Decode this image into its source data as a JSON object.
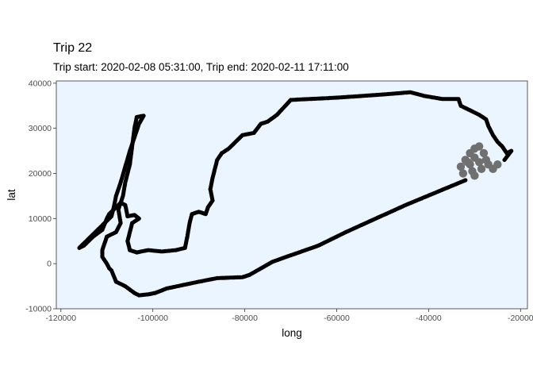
{
  "chart_data": {
    "type": "scatter",
    "title": "Trip 22",
    "subtitle": "Trip start: 2020-02-08 05:31:00, Trip end: 2020-02-11 17:11:00",
    "xlabel": "long",
    "ylabel": "lat",
    "xlim": [
      -121000,
      -18500
    ],
    "ylim": [
      -10000,
      40500
    ],
    "x_ticks": [
      -120000,
      -100000,
      -80000,
      -60000,
      -40000,
      -20000
    ],
    "x_tick_labels": [
      "-120000",
      "-100000",
      "-80000",
      "-60000",
      "-40000",
      "-20000"
    ],
    "y_ticks": [
      -10000,
      0,
      10000,
      20000,
      30000,
      40000
    ],
    "y_tick_labels": [
      "-10000",
      "0",
      "10000",
      "20000",
      "30000",
      "40000"
    ],
    "grid": false,
    "panel_background": "#ebf5ff",
    "colors": {
      "track": "#000000",
      "cluster": "#707070"
    },
    "series": [
      {
        "points": [
          [
            -32000,
            18500
          ],
          [
            -45000,
            13000
          ],
          [
            -58000,
            7000
          ],
          [
            -64000,
            4000
          ],
          [
            -71000,
            1500
          ],
          [
            -74000,
            400
          ],
          [
            -79000,
            -2500
          ],
          [
            -80500,
            -3000
          ],
          [
            -86000,
            -3200
          ],
          [
            -90000,
            -4000
          ],
          [
            -97000,
            -5500
          ],
          [
            -99500,
            -6500
          ],
          [
            -101000,
            -6800
          ],
          [
            -103000,
            -7000
          ],
          [
            -104000,
            -6500
          ],
          [
            -106000,
            -5000
          ],
          [
            -108000,
            -4000
          ],
          [
            -109000,
            -1500
          ],
          [
            -109500,
            -1000
          ],
          [
            -110000,
            0
          ],
          [
            -111000,
            1500
          ],
          [
            -111000,
            3000
          ],
          [
            -110000,
            6000
          ],
          [
            -108000,
            7000
          ],
          [
            -107000,
            9000
          ],
          [
            -107500,
            12000
          ],
          [
            -106500,
            15000
          ],
          [
            -106000,
            18000
          ],
          [
            -105000,
            22000
          ],
          [
            -104500,
            26000
          ],
          [
            -104000,
            30000
          ],
          [
            -103500,
            32500
          ],
          [
            -102000,
            32800
          ],
          [
            -103000,
            31000
          ],
          [
            -105000,
            25000
          ],
          [
            -107000,
            18000
          ],
          [
            -108000,
            15000
          ],
          [
            -108500,
            12500
          ],
          [
            -109000,
            10500
          ],
          [
            -110000,
            9500
          ],
          [
            -111500,
            8000
          ],
          [
            -113000,
            6500
          ],
          [
            -115000,
            4500
          ],
          [
            -116000,
            3500
          ],
          [
            -115000,
            4000
          ],
          [
            -113000,
            6000
          ],
          [
            -111000,
            7500
          ],
          [
            -110000,
            10000
          ],
          [
            -109500,
            11000
          ],
          [
            -108000,
            12500
          ],
          [
            -107000,
            13500
          ],
          [
            -106000,
            13000
          ],
          [
            -105500,
            10500
          ],
          [
            -104000,
            10800
          ],
          [
            -103000,
            10000
          ],
          [
            -104500,
            9000
          ],
          [
            -105000,
            7000
          ],
          [
            -105500,
            5000
          ],
          [
            -105000,
            3000
          ],
          [
            -103500,
            2500
          ],
          [
            -101000,
            3000
          ],
          [
            -98000,
            2700
          ],
          [
            -95000,
            3000
          ],
          [
            -93000,
            3500
          ],
          [
            -92500,
            6000
          ],
          [
            -92000,
            9000
          ],
          [
            -91500,
            11000
          ],
          [
            -90000,
            11500
          ],
          [
            -88500,
            11000
          ],
          [
            -88000,
            12500
          ],
          [
            -87000,
            14000
          ],
          [
            -87500,
            16500
          ],
          [
            -87000,
            19000
          ],
          [
            -86500,
            21000
          ],
          [
            -86000,
            23000
          ],
          [
            -85000,
            24500
          ],
          [
            -83500,
            25500
          ],
          [
            -82000,
            27000
          ],
          [
            -80500,
            28500
          ],
          [
            -78000,
            29000
          ],
          [
            -76500,
            31000
          ],
          [
            -75000,
            31500
          ],
          [
            -73000,
            33000
          ],
          [
            -70000,
            36300
          ],
          [
            -60000,
            36800
          ],
          [
            -50000,
            37500
          ],
          [
            -44000,
            38000
          ],
          [
            -41000,
            37200
          ],
          [
            -37000,
            36500
          ],
          [
            -33500,
            36500
          ],
          [
            -33000,
            35000
          ],
          [
            -31000,
            34000
          ],
          [
            -29000,
            33000
          ],
          [
            -27500,
            32000
          ],
          [
            -27000,
            30500
          ],
          [
            -26000,
            28500
          ],
          [
            -25000,
            27000
          ],
          [
            -24000,
            26000
          ],
          [
            -23000,
            24500
          ],
          [
            -22000,
            25000
          ],
          [
            -23500,
            23000
          ]
        ]
      },
      {
        "points": [
          [
            -30000,
            25500
          ],
          [
            -29000,
            26000
          ],
          [
            -31000,
            24500
          ],
          [
            -28000,
            24500
          ],
          [
            -32000,
            23000
          ],
          [
            -30000,
            23500
          ],
          [
            -27500,
            23000
          ],
          [
            -33000,
            21500
          ],
          [
            -31000,
            22000
          ],
          [
            -29000,
            22500
          ],
          [
            -27000,
            22000
          ],
          [
            -26000,
            21000
          ],
          [
            -32500,
            20000
          ],
          [
            -30500,
            20500
          ],
          [
            -28500,
            21000
          ],
          [
            -30000,
            19500
          ],
          [
            -25000,
            22000
          ],
          [
            -31500,
            22500
          ]
        ]
      }
    ]
  }
}
